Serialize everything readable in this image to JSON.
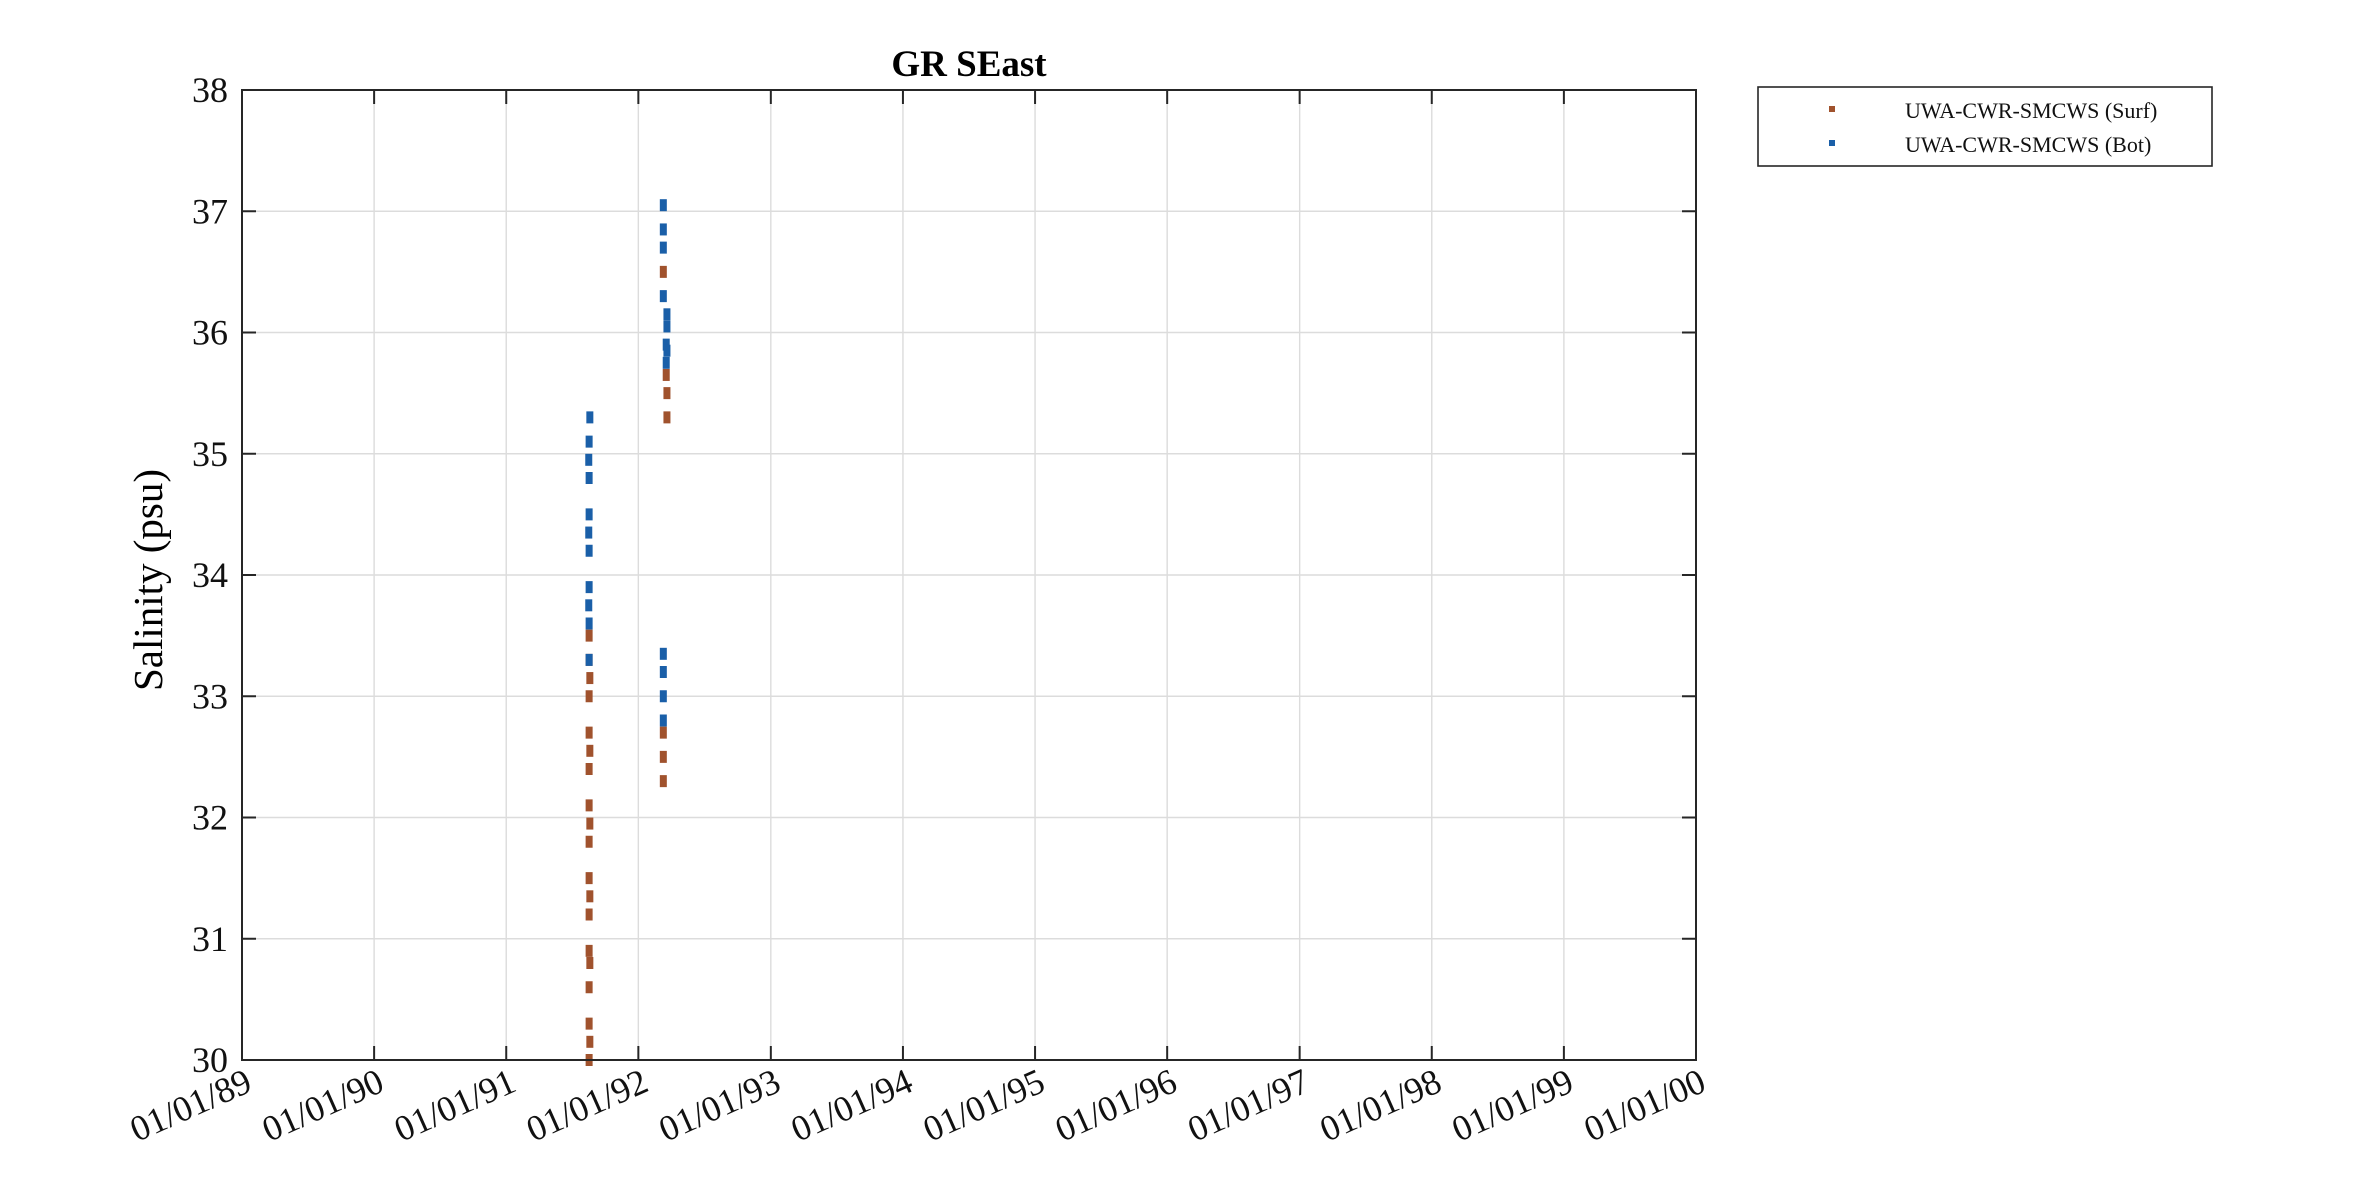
{
  "chart_data": {
    "type": "scatter",
    "title": "GR SEast",
    "xlabel": "",
    "ylabel": "Salinity (psu)",
    "xlim": [
      "1989-01-01",
      "2000-01-01"
    ],
    "ylim": [
      30,
      38
    ],
    "grid": true,
    "legend_position": "outside-top-right",
    "x_ticks": [
      "1989-01-01",
      "1990-01-01",
      "1991-01-01",
      "1992-01-01",
      "1993-01-01",
      "1994-01-01",
      "1995-01-01",
      "1996-01-01",
      "1997-01-01",
      "1998-01-01",
      "1999-01-01",
      "2000-01-01"
    ],
    "x_tick_labels": [
      "01/01/89",
      "01/01/90",
      "01/01/91",
      "01/01/92",
      "01/01/93",
      "01/01/94",
      "01/01/95",
      "01/01/96",
      "01/01/97",
      "01/01/98",
      "01/01/99",
      "01/01/00"
    ],
    "y_ticks": [
      30,
      31,
      32,
      33,
      34,
      35,
      36,
      37,
      38
    ],
    "y_tick_labels": [
      "30",
      "31",
      "32",
      "33",
      "34",
      "35",
      "36",
      "37",
      "38"
    ],
    "series": [
      {
        "name": "UWA-CWR-SMCWS (Surf)",
        "color": "#a0522d",
        "marker": "square",
        "points": [
          [
            "1991-08-18",
            30.0
          ],
          [
            "1991-08-18",
            30.3
          ],
          [
            "1991-08-18",
            30.6
          ],
          [
            "1991-08-18",
            30.9
          ],
          [
            "1991-08-18",
            31.2
          ],
          [
            "1991-08-18",
            31.5
          ],
          [
            "1991-08-18",
            31.8
          ],
          [
            "1991-08-18",
            32.1
          ],
          [
            "1991-08-18",
            32.4
          ],
          [
            "1991-08-18",
            32.7
          ],
          [
            "1991-08-18",
            33.0
          ],
          [
            "1991-08-18",
            33.3
          ],
          [
            "1991-08-18",
            33.5
          ],
          [
            "1991-08-20",
            30.15
          ],
          [
            "1991-08-20",
            30.8
          ],
          [
            "1991-08-20",
            31.35
          ],
          [
            "1991-08-20",
            31.95
          ],
          [
            "1991-08-20",
            32.55
          ],
          [
            "1991-08-20",
            33.15
          ],
          [
            "1992-03-10",
            32.3
          ],
          [
            "1992-03-10",
            32.5
          ],
          [
            "1992-03-10",
            32.7
          ],
          [
            "1992-03-10",
            36.5
          ],
          [
            "1992-03-20",
            35.3
          ],
          [
            "1992-03-20",
            35.5
          ],
          [
            "1992-03-18",
            35.65
          ]
        ]
      },
      {
        "name": "UWA-CWR-SMCWS (Bot)",
        "color": "#1a5fa8",
        "marker": "square",
        "points": [
          [
            "1991-08-18",
            33.3
          ],
          [
            "1991-08-18",
            33.6
          ],
          [
            "1991-08-18",
            33.9
          ],
          [
            "1991-08-18",
            34.2
          ],
          [
            "1991-08-18",
            34.5
          ],
          [
            "1991-08-18",
            34.8
          ],
          [
            "1991-08-18",
            35.1
          ],
          [
            "1991-08-20",
            35.3
          ],
          [
            "1991-08-17",
            33.75
          ],
          [
            "1991-08-17",
            34.35
          ],
          [
            "1991-08-17",
            34.95
          ],
          [
            "1992-03-10",
            32.8
          ],
          [
            "1992-03-10",
            33.0
          ],
          [
            "1992-03-10",
            33.2
          ],
          [
            "1992-03-10",
            33.35
          ],
          [
            "1992-03-10",
            36.3
          ],
          [
            "1992-03-10",
            36.7
          ],
          [
            "1992-03-10",
            36.85
          ],
          [
            "1992-03-10",
            37.05
          ],
          [
            "1992-03-18",
            35.75
          ],
          [
            "1992-03-18",
            35.9
          ],
          [
            "1992-03-20",
            36.05
          ],
          [
            "1992-03-20",
            36.15
          ],
          [
            "1992-03-20",
            35.85
          ]
        ]
      }
    ]
  }
}
